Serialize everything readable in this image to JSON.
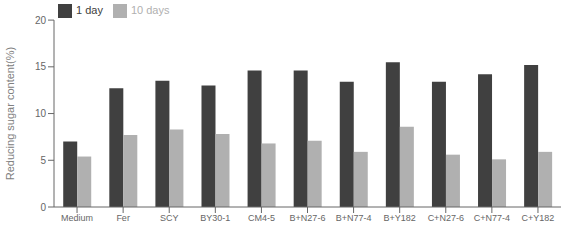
{
  "chart_data": {
    "type": "bar",
    "categories": [
      "Medium",
      "Fer",
      "SCY",
      "BY30-1",
      "CM4-5",
      "B+N27-6",
      "B+N77-4",
      "B+Y182",
      "C+N27-6",
      "C+N77-4",
      "C+Y182"
    ],
    "series": [
      {
        "name": "1 day",
        "color": "#404040",
        "values": [
          7.0,
          12.7,
          13.5,
          13.0,
          14.6,
          14.6,
          13.4,
          15.5,
          13.4,
          14.2,
          15.2
        ]
      },
      {
        "name": "10 days",
        "color": "#b0b0b0",
        "values": [
          5.4,
          7.7,
          8.3,
          7.8,
          6.8,
          7.1,
          5.9,
          8.6,
          5.6,
          5.1,
          5.9
        ]
      }
    ],
    "ylabel": "Reducing sugar content(%)",
    "ylim": [
      0,
      20
    ],
    "yticks": [
      0,
      5,
      10,
      15,
      20
    ],
    "grid": false,
    "legend": "upper left"
  }
}
